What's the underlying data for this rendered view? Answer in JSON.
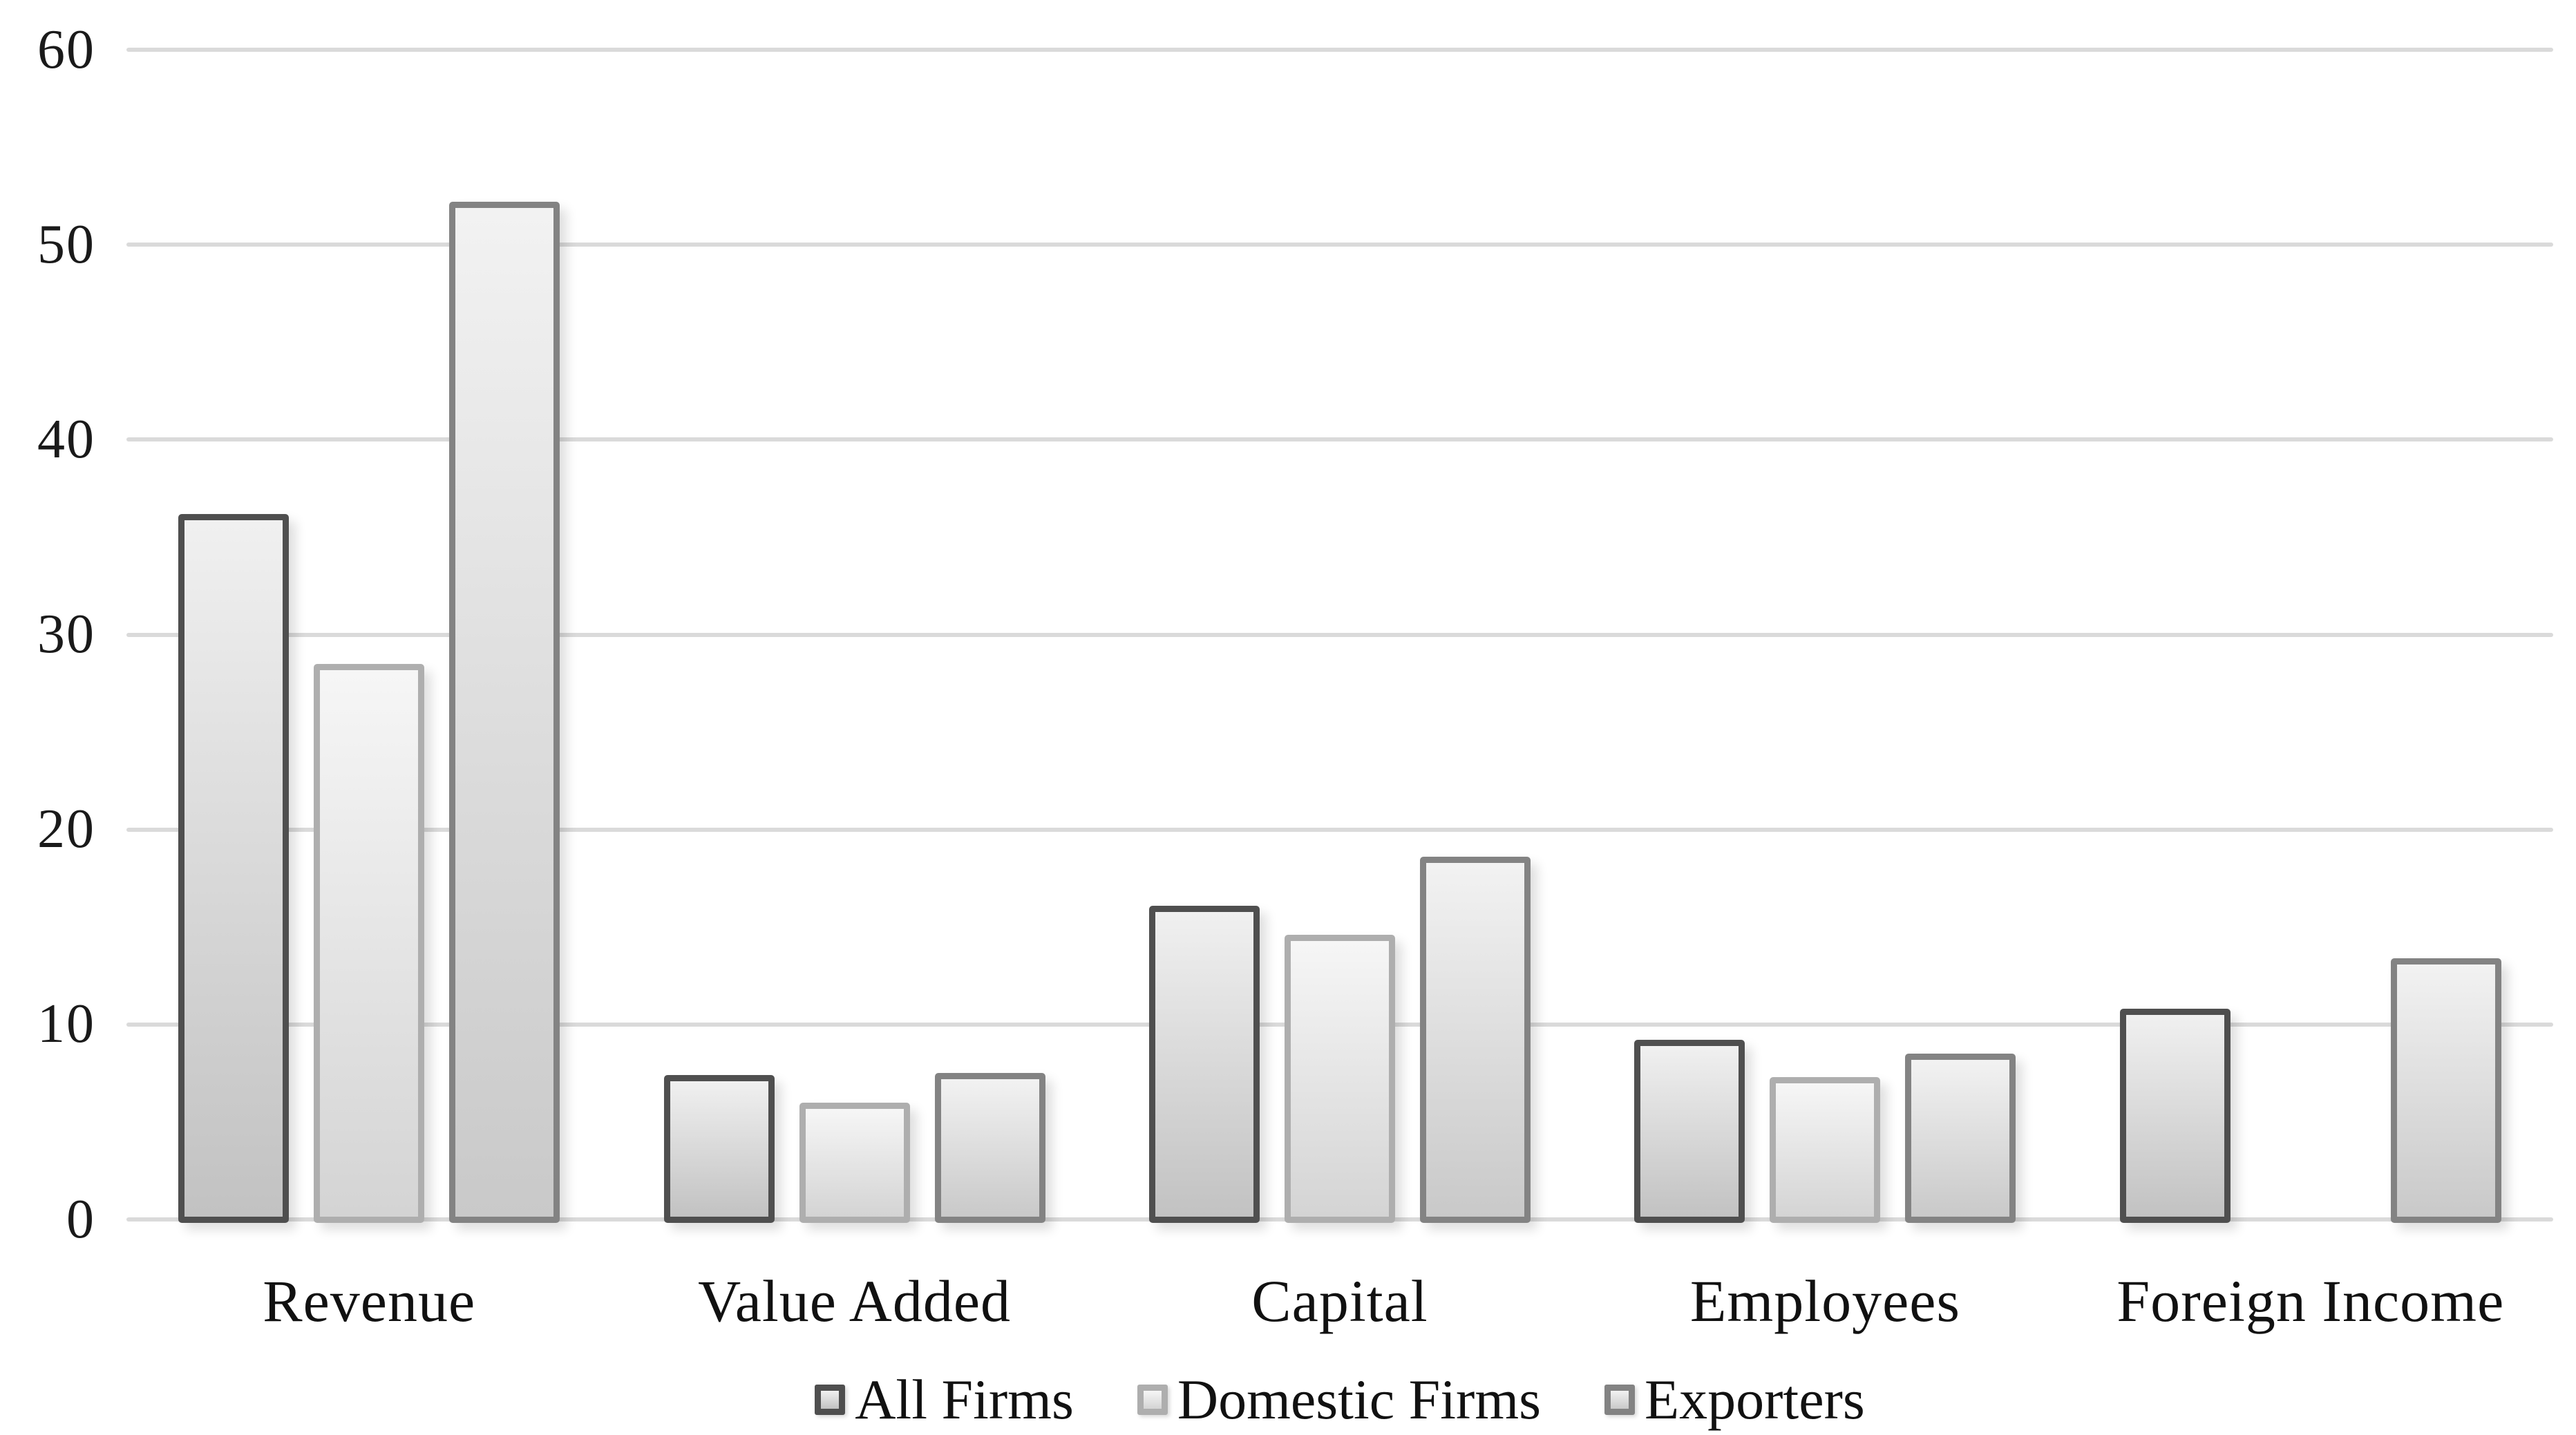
{
  "page": {
    "background": "#ffffff"
  },
  "chart_data": {
    "type": "bar",
    "title": "",
    "xlabel": "",
    "ylabel": "",
    "categories": [
      "Revenue",
      "Value Added",
      "Capital",
      "Employees",
      "Foreign Income"
    ],
    "series": [
      {
        "name": "All Firms",
        "values": [
          36.2,
          7.4,
          16.1,
          9.2,
          10.8
        ],
        "border_color": "#4f4f4f",
        "fill_top": "#f0f0f0",
        "fill_bottom": "#c2c2c2"
      },
      {
        "name": "Domestic Firms",
        "values": [
          28.5,
          6.0,
          14.6,
          7.3,
          0
        ],
        "border_color": "#aeaeae",
        "fill_top": "#f6f6f6",
        "fill_bottom": "#d4d4d4"
      },
      {
        "name": "Exporters",
        "values": [
          52.2,
          7.5,
          18.6,
          8.5,
          13.4
        ],
        "border_color": "#838383",
        "fill_top": "#f2f2f2",
        "fill_bottom": "#c9c9c9"
      }
    ],
    "ylim": [
      0,
      60
    ],
    "yticks": [
      0,
      10,
      20,
      30,
      40,
      50,
      60
    ],
    "grid": "horizontal",
    "gridline_color": "#dadada",
    "legend_position": "bottom"
  }
}
